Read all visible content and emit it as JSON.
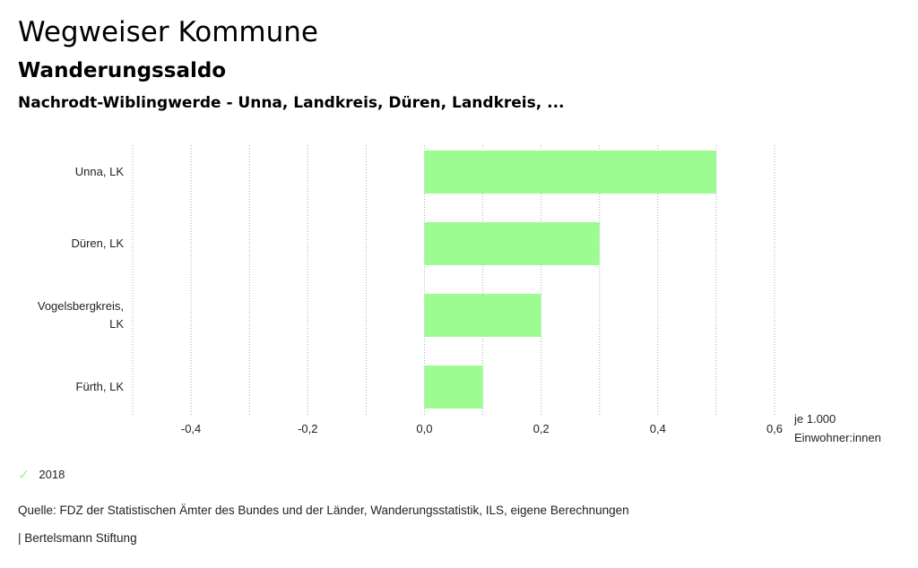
{
  "header": {
    "title": "Wegweiser Kommune",
    "subtitle": "Wanderungssaldo",
    "region": "Nachrodt-Wiblingwerde - Unna, Landkreis, Düren, Landkreis, ..."
  },
  "chart_data": {
    "type": "bar",
    "orientation": "horizontal",
    "categories": [
      [
        "Unna, LK"
      ],
      [
        "Düren, LK"
      ],
      [
        "Vogelsbergkreis,",
        "LK"
      ],
      [
        "Fürth, LK"
      ]
    ],
    "series": [
      {
        "name": "2018",
        "values": [
          0.5,
          0.3,
          0.2,
          0.1
        ]
      }
    ],
    "xlim": [
      -0.5,
      0.6
    ],
    "gridlines": [
      -0.5,
      -0.4,
      -0.3,
      -0.2,
      -0.1,
      0.0,
      0.1,
      0.2,
      0.3,
      0.4,
      0.5,
      0.6
    ],
    "ticks": [
      {
        "value": -0.4,
        "label": "-0,4"
      },
      {
        "value": -0.2,
        "label": "-0,2"
      },
      {
        "value": 0.0,
        "label": "0,0"
      },
      {
        "value": 0.2,
        "label": "0,2"
      },
      {
        "value": 0.4,
        "label": "0,4"
      },
      {
        "value": 0.6,
        "label": "0,6"
      }
    ],
    "unit_label": [
      "je 1.000",
      "Einwohner:innen"
    ],
    "grid": true
  },
  "colors": {
    "bar": "#9cfb91",
    "check": "#9cfb91",
    "grid": "#aaaaaa"
  },
  "legend": {
    "icon": "check-icon",
    "label": "2018"
  },
  "footer": {
    "source": "Quelle: FDZ der Statistischen Ämter des Bundes und der Länder, Wanderungsstatistik, ILS, eigene Berechnungen",
    "credit": "| Bertelsmann Stiftung"
  }
}
